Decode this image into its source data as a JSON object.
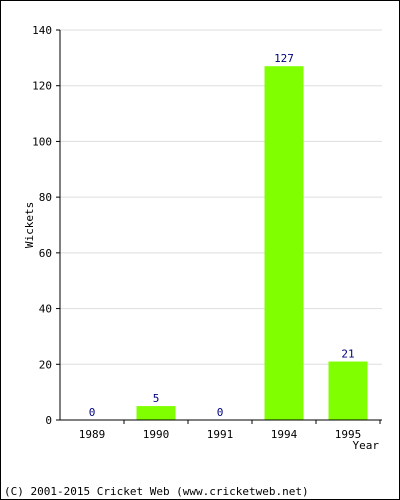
{
  "chart_data": {
    "type": "bar",
    "categories": [
      "1989",
      "1990",
      "1991",
      "1994",
      "1995"
    ],
    "values": [
      0,
      5,
      0,
      127,
      21
    ],
    "ylabel": "Wickets",
    "xlabel": "Year",
    "ylim": [
      0,
      140
    ],
    "yticks": [
      0,
      20,
      40,
      60,
      80,
      100,
      120,
      140
    ],
    "grid": true,
    "bar_color": "#80ff00",
    "value_label_color": "#000080"
  },
  "footer": {
    "copyright": "(C) 2001-2015 Cricket Web (www.cricketweb.net)"
  }
}
